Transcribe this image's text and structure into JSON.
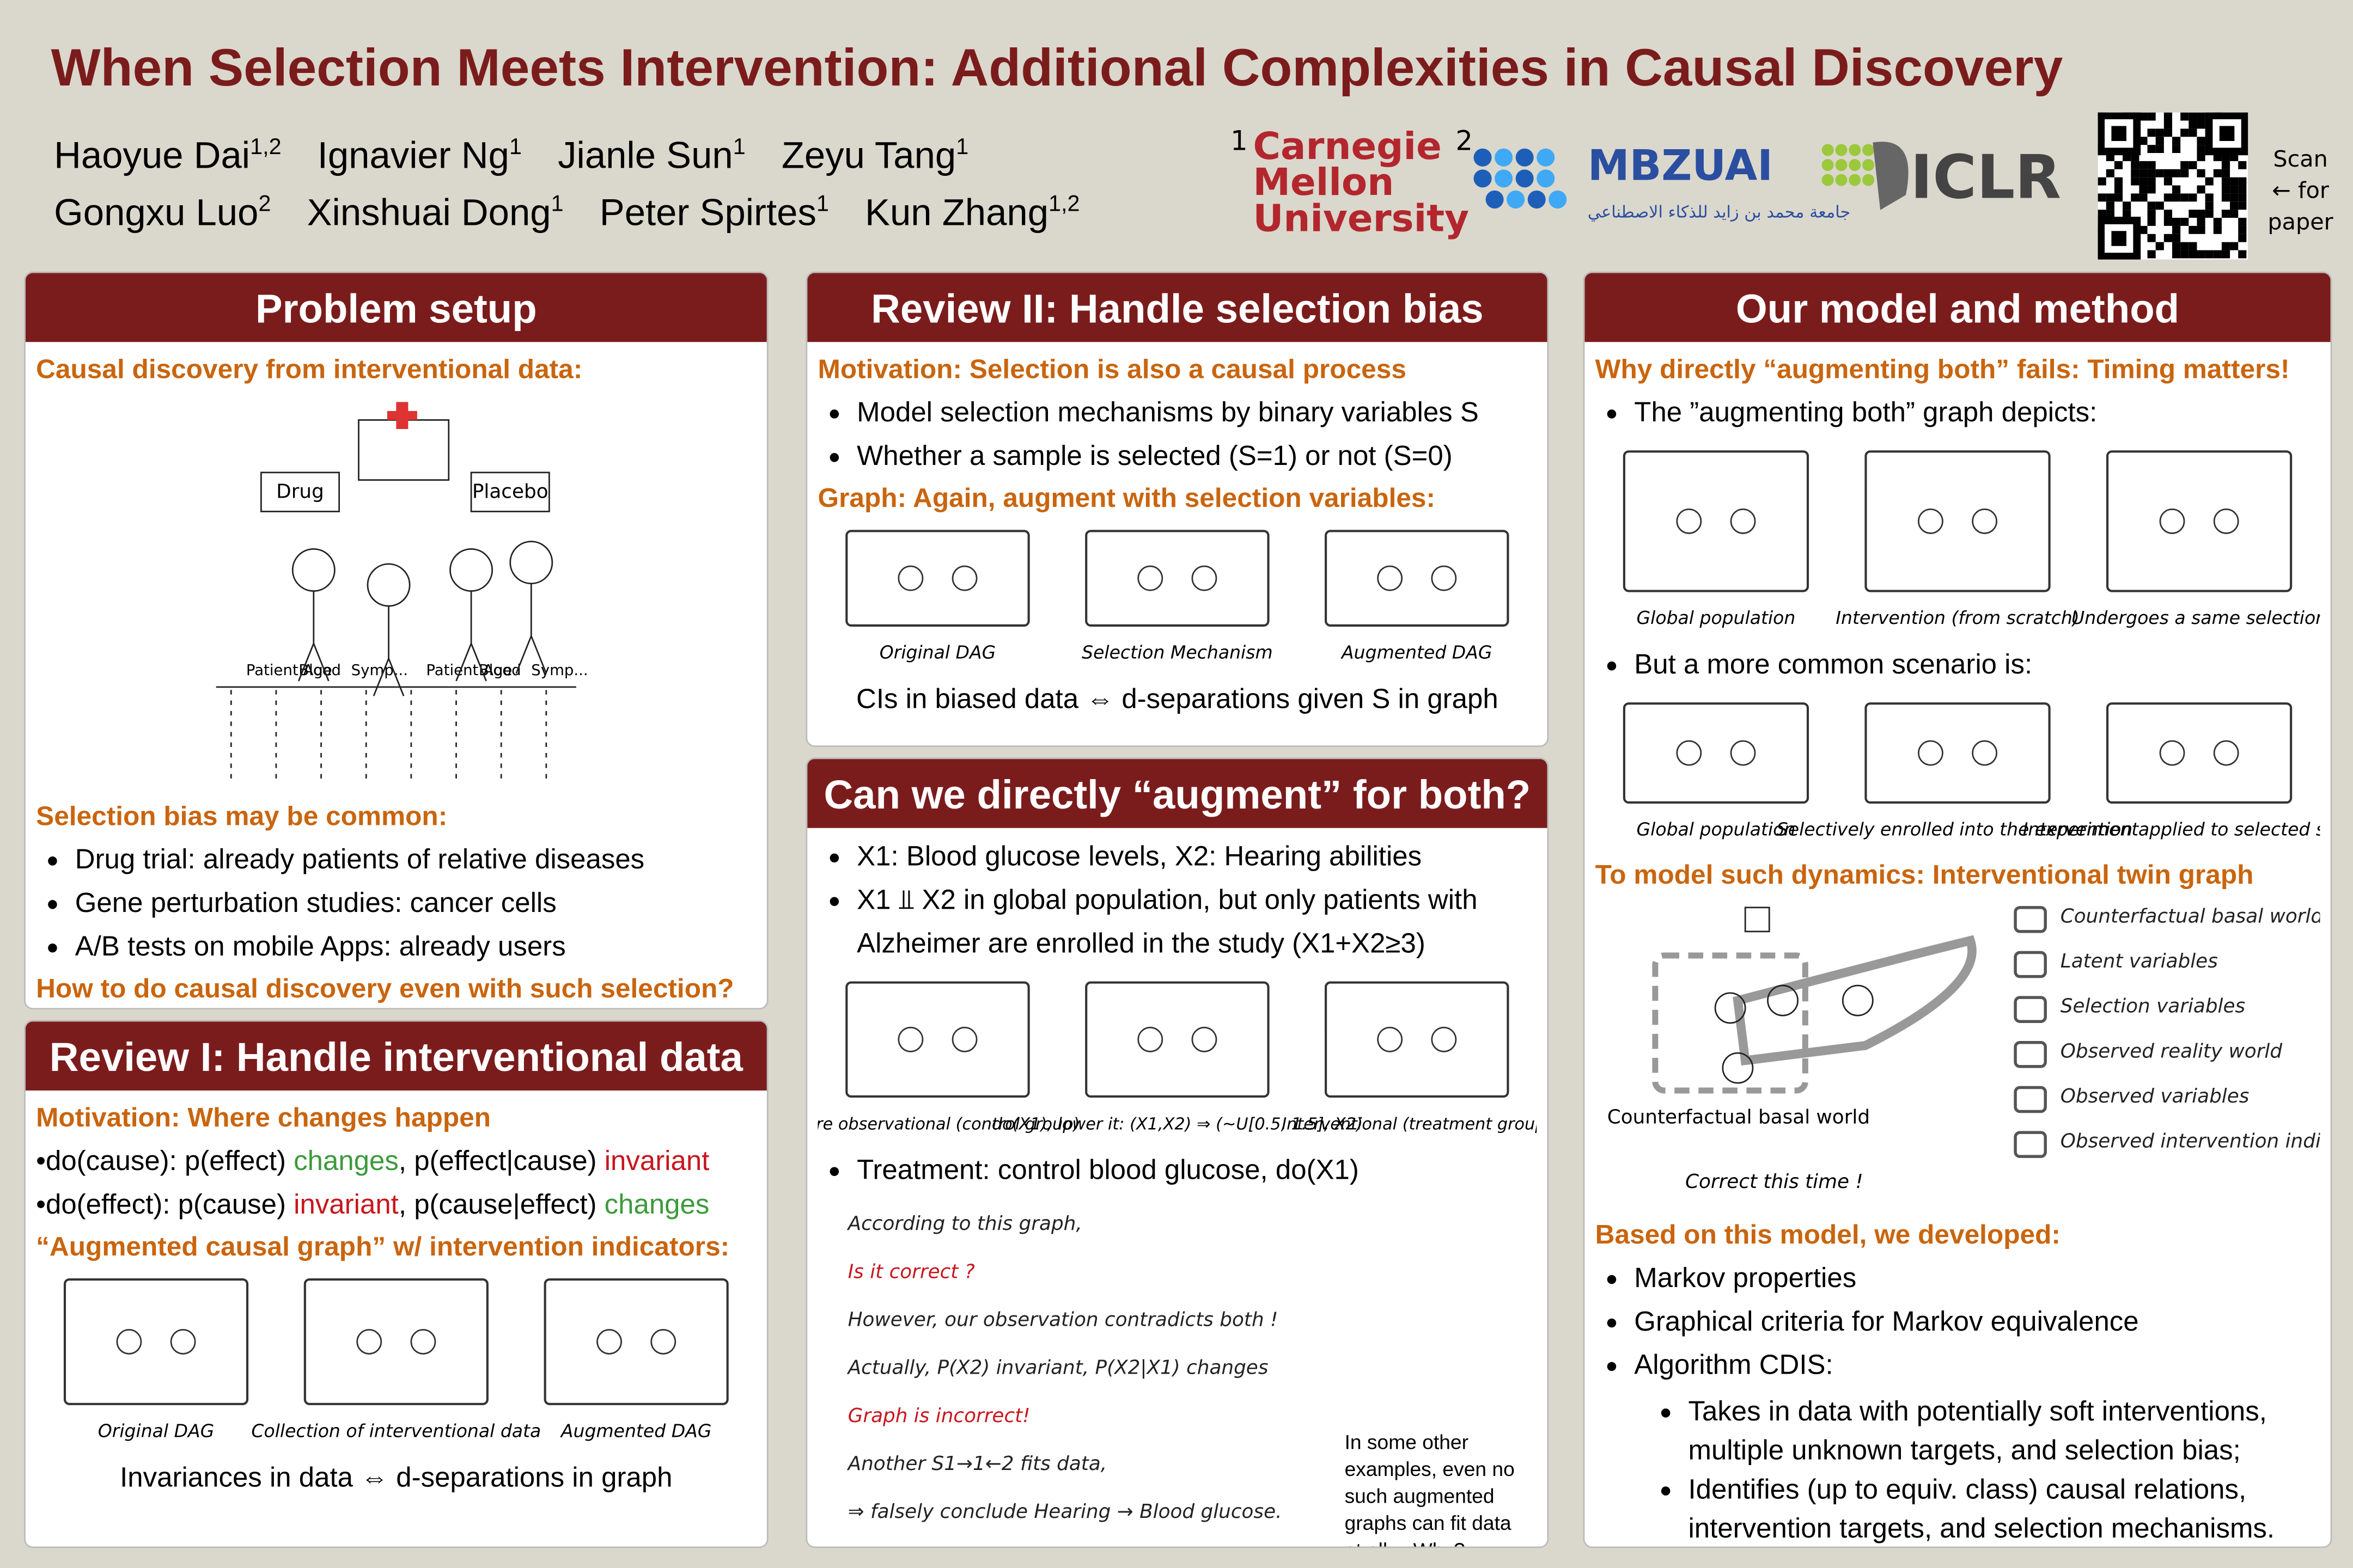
{
  "header": {
    "title": "When Selection Meets Intervention: Additional Complexities in Causal Discovery",
    "authors": [
      [
        {
          "name": "Haoyue Dai",
          "sup": "1,2"
        },
        {
          "name": "Ignavier Ng",
          "sup": "1"
        },
        {
          "name": "Jianle Sun",
          "sup": "1"
        },
        {
          "name": "Zeyu Tang",
          "sup": "1"
        }
      ],
      [
        {
          "name": "Gongxu Luo",
          "sup": "2"
        },
        {
          "name": "Xinshuai Dong",
          "sup": "1"
        },
        {
          "name": "Peter Spirtes",
          "sup": "1"
        },
        {
          "name": "Kun Zhang",
          "sup": "1,2"
        }
      ]
    ],
    "affiliations": [
      {
        "mark": "1",
        "name": "Carnegie Mellon University"
      },
      {
        "mark": "2",
        "name": "MBZUAI",
        "subname": "جامعة محمد بن زايد للذكاء الاصطناعي"
      }
    ],
    "conference": "ICLR",
    "qr_note": "Scan ← for paper"
  },
  "panels": [
    {
      "title": "Problem setup",
      "blocks": [
        {
          "type": "h",
          "text": "Causal discovery from interventional data:"
        },
        {
          "type": "fig",
          "labels": [
            "Drug",
            "Placebo",
            "Patient Age",
            "Blood",
            "Symp..."
          ]
        },
        {
          "type": "h",
          "text": "Selection bias may be common:"
        },
        {
          "type": "ul",
          "items": [
            "Drug trial: already patients of relative diseases",
            "Gene perturbation studies: cancer cells",
            "A/B tests on mobile Apps: already users"
          ]
        },
        {
          "type": "h",
          "text": "How to do causal discovery even with such selection?"
        }
      ]
    },
    {
      "title": "Review I: Handle interventional data",
      "blocks": [
        {
          "type": "h",
          "text": "Motivation: Where changes happen"
        },
        {
          "type": "dots",
          "items": [
            [
              {
                "text": "do(cause): p(effect) "
              },
              {
                "text": "changes",
                "color": "#3c9a3c"
              },
              {
                "text": ", p(effect|cause) "
              },
              {
                "text": "invariant",
                "color": "#c8161d"
              }
            ],
            [
              {
                "text": "do(effect): p(cause) "
              },
              {
                "text": "invariant",
                "color": "#c8161d"
              },
              {
                "text": ", p(cause|effect) "
              },
              {
                "text": "changes",
                "color": "#3c9a3c"
              }
            ]
          ]
        },
        {
          "type": "h",
          "text": "“Augmented causal graph” w/ intervention indicators:"
        },
        {
          "type": "fig",
          "labels": [
            "Original DAG",
            "Collection of interventional data",
            "Augmented DAG"
          ]
        },
        {
          "type": "p",
          "text": "Invariances in data ⇔ d-separations in graph"
        }
      ]
    },
    {
      "title": "Review II: Handle selection bias",
      "blocks": [
        {
          "type": "h",
          "text": "Motivation: Selection is also a causal process"
        },
        {
          "type": "ul",
          "items": [
            "Model selection mechanisms by binary variables S",
            "Whether a sample is selected (S=1) or not (S=0)"
          ]
        },
        {
          "type": "h",
          "text": "Graph: Again, augment with selection variables:"
        },
        {
          "type": "fig",
          "labels": [
            "Original DAG",
            "Selection Mechanism",
            "Augmented DAG"
          ]
        },
        {
          "type": "p",
          "text": "CIs in biased data ⇔ d-separations given S in graph"
        }
      ]
    },
    {
      "title": "Can we directly “augment” for both?",
      "blocks": [
        {
          "type": "ul",
          "items": [
            "X1: Blood glucose levels, X2: Hearing abilities",
            "X1 ⫫ X2 in global population, but only patients with Alzheimer are enrolled in the study (X1+X2≥3)"
          ]
        },
        {
          "type": "fig",
          "labels": [
            "Pure observational (control group)",
            "do(X1), lower it: (X1,X2) ⇒ (~U[0.5, 1.5], X2)",
            "Interventional (treatment group)"
          ]
        },
        {
          "type": "ul",
          "items": [
            "Treatment: control blood glucose, do(X1)"
          ]
        },
        {
          "type": "fig",
          "labels": [
            "According to this graph,",
            "Is it correct ?",
            "However, our observation contradicts both !",
            "Actually, P(X2) invariant, P(X2|X1) changes",
            "Graph is incorrect!",
            "Another S1→1←2 fits data,",
            "⇒ falsely conclude Hearing → Blood glucose.",
            "In some other examples, even no such augmented graphs can fit data at all… Why?"
          ]
        }
      ]
    },
    {
      "title": "Our model and method",
      "blocks": [
        {
          "type": "h",
          "text": "Why directly “augmenting both” fails: Timing matters!"
        },
        {
          "type": "ul",
          "items": [
            "The ”augmenting both” graph depicts:"
          ]
        },
        {
          "type": "fig",
          "labels": [
            "Global population",
            "Intervention (from scratch)",
            "Undergoes a same selection"
          ]
        },
        {
          "type": "ul",
          "items": [
            "But a more common scenario is:"
          ]
        },
        {
          "type": "fig",
          "labels": [
            "Global population",
            "Selectively enrolled into the experiment",
            "Intervention applied to selected subset"
          ]
        },
        {
          "type": "h",
          "text": "To model such dynamics: Interventional twin graph"
        },
        {
          "type": "fig",
          "labels": [
            "Counterfactual basal world",
            "Latent variables",
            "Selection variables",
            "Observed reality world",
            "Observed variables",
            "Observed intervention indicators",
            "Correct this time !"
          ]
        },
        {
          "type": "h",
          "text": "Based on this model, we developed:"
        },
        {
          "type": "ul",
          "items": [
            "Markov properties",
            "Graphical criteria for Markov equivalence",
            "Algorithm CDIS:"
          ]
        },
        {
          "type": "ul2",
          "items": [
            "Takes in data with potentially soft interventions, multiple unknown targets, and selection bias;",
            "Identifies (up to equiv. class) causal relations, intervention targets, and selection mechanisms."
          ]
        }
      ]
    }
  ]
}
